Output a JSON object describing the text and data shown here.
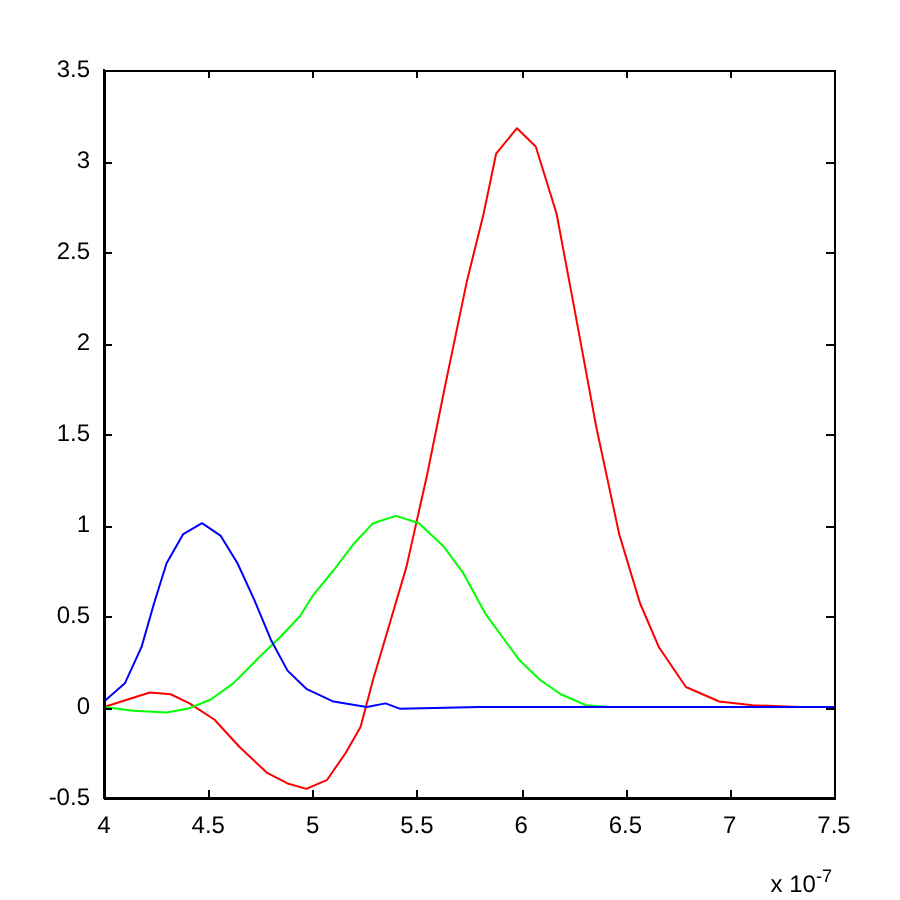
{
  "chart_data": {
    "type": "line",
    "xlim": [
      4,
      7.5
    ],
    "xticks": [
      4,
      4.5,
      5,
      5.5,
      6,
      6.5,
      7,
      7.5
    ],
    "ylim": [
      -0.5,
      3.5
    ],
    "yticks": [
      -0.5,
      0,
      0.5,
      1,
      1.5,
      2,
      2.5,
      3,
      3.5
    ],
    "annotations": [
      "x 10$^{-7}$"
    ],
    "series": [
      {
        "color": "#ff0000",
        "x": [
          4.0,
          4.11,
          4.22,
          4.32,
          4.41,
          4.53,
          4.65,
          4.78,
          4.88,
          4.97,
          5.07,
          5.16,
          5.23,
          5.29,
          5.36,
          5.45,
          5.55,
          5.64,
          5.74,
          5.82,
          5.88,
          5.98,
          6.07,
          6.17,
          6.26,
          6.36,
          6.47,
          6.57,
          6.66,
          6.79,
          6.95,
          7.11,
          7.33
        ],
        "values": [
          0,
          0.04,
          0.08,
          0.07,
          0.02,
          -0.07,
          -0.22,
          -0.36,
          -0.42,
          -0.45,
          -0.4,
          -0.25,
          -0.11,
          0.15,
          0.42,
          0.77,
          1.28,
          1.79,
          2.34,
          2.71,
          3.04,
          3.18,
          3.08,
          2.71,
          2.16,
          1.54,
          0.95,
          0.57,
          0.33,
          0.11,
          0.03,
          0.01,
          0
        ]
      },
      {
        "color": "#00ff00",
        "x": [
          4.0,
          4.14,
          4.3,
          4.4,
          4.51,
          4.62,
          4.75,
          4.85,
          4.94,
          5.0,
          5.1,
          5.2,
          5.29,
          5.4,
          5.51,
          5.63,
          5.72,
          5.83,
          5.99,
          6.09,
          6.19,
          6.31,
          6.42
        ],
        "values": [
          0,
          -0.02,
          -0.03,
          -0.01,
          0.04,
          0.13,
          0.28,
          0.39,
          0.5,
          0.61,
          0.75,
          0.9,
          1.01,
          1.05,
          1.01,
          0.88,
          0.74,
          0.51,
          0.26,
          0.15,
          0.07,
          0.01,
          0
        ]
      },
      {
        "color": "#0000ff",
        "x": [
          4.0,
          4.1,
          4.18,
          4.24,
          4.3,
          4.38,
          4.47,
          4.56,
          4.64,
          4.72,
          4.8,
          4.88,
          4.97,
          5.1,
          5.26,
          5.35,
          5.42,
          5.8,
          7.5
        ],
        "values": [
          0.03,
          0.13,
          0.33,
          0.57,
          0.79,
          0.95,
          1.01,
          0.94,
          0.79,
          0.59,
          0.37,
          0.2,
          0.1,
          0.03,
          0,
          0.02,
          -0.01,
          0,
          0
        ]
      }
    ]
  }
}
